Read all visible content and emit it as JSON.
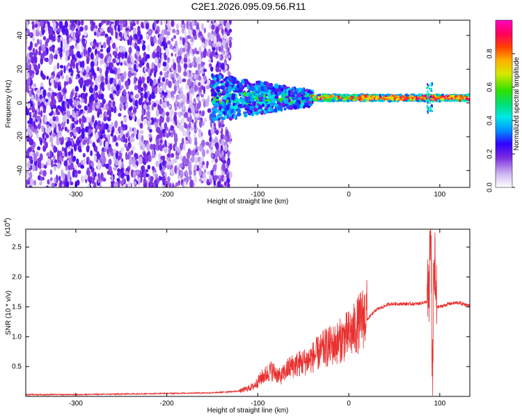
{
  "title": "C2E1.2026.095.09.56.R11",
  "chart_data": [
    {
      "type": "heatmap",
      "xlabel": "Height of straight line (km)",
      "ylabel": "Frequency (Hz)",
      "xlim": [
        -355,
        133
      ],
      "ylim": [
        -50,
        49
      ],
      "xticks": [
        -300,
        -200,
        -100,
        0,
        100
      ],
      "yticks": [
        -40,
        -20,
        0,
        20,
        40
      ],
      "colorbar": {
        "label": "Normalized spectral amplitude",
        "range": [
          0.0,
          1.0
        ],
        "ticks": [
          0.0,
          0.2,
          0.4,
          0.6,
          0.8
        ],
        "tick_labels": [
          "0.0",
          "0.2",
          "0.4",
          "0.6",
          "0.8"
        ]
      },
      "description_regions": [
        {
          "x_range": [
            -355,
            -135
          ],
          "freq_range": [
            -50,
            49
          ],
          "amplitude": [
            0.05,
            0.25
          ]
        },
        {
          "x_range": [
            -150,
            -40
          ],
          "freq_range": [
            -12,
            15
          ],
          "amplitude": [
            0.2,
            0.6
          ]
        },
        {
          "x_range": [
            -40,
            133
          ],
          "freq_range": [
            0,
            5
          ],
          "amplitude": [
            0.6,
            1.0
          ]
        }
      ]
    },
    {
      "type": "line",
      "xlabel": "Height of straight line (km)",
      "ylabel": "SNR (10 * v/v)",
      "yscale_label": "(x10",
      "yscale_exp": "4",
      "yscale_close": ")",
      "xlim": [
        -355,
        133
      ],
      "ylim": [
        0.0,
        2.8
      ],
      "xticks": [
        -300,
        -200,
        -100,
        0,
        100
      ],
      "yticks": [
        0.5,
        1.0,
        1.5,
        2.0,
        2.5
      ],
      "ytick_labels": [
        "0.5",
        "1.0",
        "1.5",
        "2.0",
        "2.5"
      ],
      "color": "#e8302e",
      "series": [
        {
          "name": "SNR",
          "x": [
            -355,
            -300,
            -250,
            -200,
            -150,
            -120,
            -105,
            -95,
            -85,
            -75,
            -65,
            -55,
            -45,
            -35,
            -25,
            -15,
            -5,
            5,
            15,
            30,
            45,
            60,
            75,
            85,
            88,
            90,
            92,
            94,
            96,
            100,
            110,
            120,
            133
          ],
          "y": [
            0.02,
            0.02,
            0.03,
            0.04,
            0.05,
            0.08,
            0.15,
            0.3,
            0.4,
            0.3,
            0.45,
            0.5,
            0.55,
            0.65,
            0.75,
            0.8,
            0.9,
            1.0,
            1.2,
            1.45,
            1.55,
            1.55,
            1.55,
            1.58,
            1.6,
            2.7,
            0.5,
            2.3,
            1.5,
            1.5,
            1.55,
            1.57,
            1.52
          ]
        }
      ]
    }
  ]
}
